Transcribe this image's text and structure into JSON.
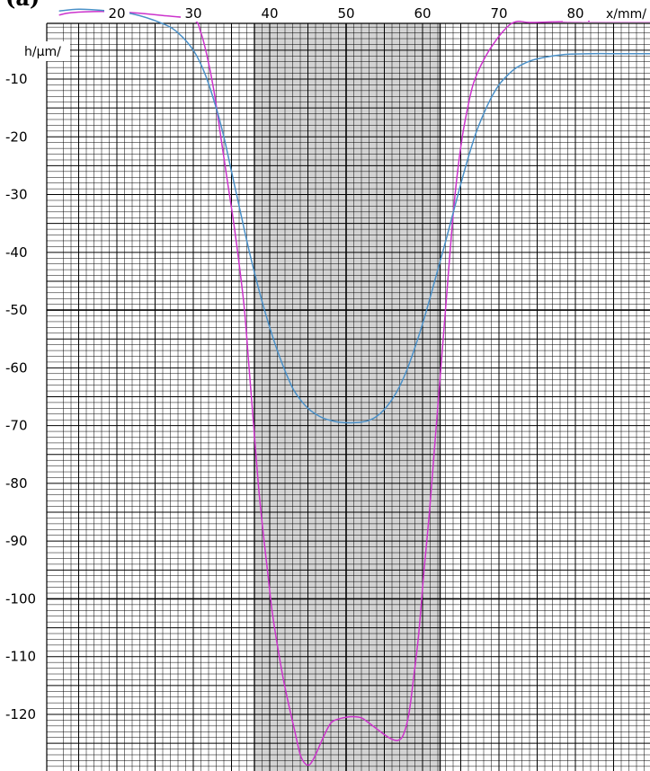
{
  "corner_text": "(a)",
  "chart_data": {
    "type": "line",
    "xlabel": "x/mm/",
    "ylabel": "h/µm/",
    "xlim": [
      12.5,
      90
    ],
    "ylim": [
      -129,
      5
    ],
    "xticks": [
      {
        "value": 20,
        "label": "20"
      },
      {
        "value": 30,
        "label": "30"
      },
      {
        "value": 40,
        "label": "40"
      },
      {
        "value": 50,
        "label": "50"
      },
      {
        "value": 60,
        "label": "60"
      },
      {
        "value": 70,
        "label": "70"
      },
      {
        "value": 80,
        "label": "80"
      }
    ],
    "yticks": [
      {
        "value": -10,
        "label": "-10"
      },
      {
        "value": -20,
        "label": "-20"
      },
      {
        "value": -30,
        "label": "-30"
      },
      {
        "value": -40,
        "label": "-40"
      },
      {
        "value": -50,
        "label": "-50"
      },
      {
        "value": -60,
        "label": "-60"
      },
      {
        "value": -70,
        "label": "-70"
      },
      {
        "value": -80,
        "label": "-80"
      },
      {
        "value": -90,
        "label": "-90"
      },
      {
        "value": -100,
        "label": "-100"
      },
      {
        "value": -110,
        "label": "-110"
      },
      {
        "value": -120,
        "label": "-120"
      }
    ],
    "grid": true,
    "shaded_region": {
      "x_from": 38,
      "x_to": 62.3,
      "color": "#d3d3d3"
    },
    "series": [
      {
        "color": "#cc33cc",
        "x": [
          12.5,
          14,
          18,
          22,
          26,
          30,
          31,
          31.8,
          32.7,
          33.6,
          34.5,
          35.3,
          36,
          36.7,
          37.3,
          37.9,
          38.5,
          39.1,
          39.7,
          40.3,
          41,
          41.8,
          42.6,
          43.3,
          44,
          44.7,
          45.3,
          46,
          47,
          48,
          49,
          50,
          51,
          52,
          53,
          54,
          55,
          56,
          56.8,
          57.5,
          58.2,
          58.8,
          59.5,
          60.2,
          60.9,
          61.5,
          62.1,
          62.7,
          63.3,
          63.9,
          64.5,
          65.2,
          65.9,
          66.6,
          67.5,
          68.5,
          69.5,
          70.5,
          71.5,
          72.5,
          74,
          77,
          81,
          86,
          90
        ],
        "y": [
          1.1,
          1.5,
          1.7,
          1.5,
          1.0,
          0.3,
          -2,
          -6,
          -12,
          -20,
          -28,
          -35,
          -42,
          -50,
          -60,
          -70,
          -80,
          -88,
          -95,
          -102,
          -108,
          -114,
          -119,
          -123,
          -127,
          -128.6,
          -128.6,
          -127,
          -124,
          -121.5,
          -120.8,
          -120.5,
          -120.4,
          -120.6,
          -121.5,
          -122.5,
          -123.5,
          -124.3,
          -124.5,
          -123.5,
          -120,
          -114,
          -106,
          -95,
          -85,
          -75,
          -65,
          -55,
          -45,
          -35,
          -27,
          -20,
          -15,
          -11,
          -8,
          -5.5,
          -3.5,
          -1.8,
          -0.5,
          0,
          -0.2,
          -0.1,
          0,
          0,
          0
        ]
      },
      {
        "color": "#4a90c8",
        "x": [
          12.5,
          15,
          18,
          22,
          26,
          28,
          30,
          31.5,
          33,
          34,
          35,
          36,
          37,
          38,
          39,
          40,
          41,
          42,
          43,
          44,
          45,
          46,
          47,
          48,
          49,
          50,
          51,
          52,
          53,
          54,
          55,
          56,
          57,
          58,
          59,
          60,
          61,
          62,
          63,
          64,
          65,
          66,
          67,
          68,
          69,
          70,
          71,
          72,
          73,
          74,
          75,
          77,
          79,
          82,
          86,
          90
        ],
        "y": [
          1.8,
          2.1,
          1.9,
          1.3,
          -0.4,
          -2,
          -5,
          -9,
          -15,
          -20,
          -26,
          -32,
          -38,
          -43.5,
          -48.5,
          -53,
          -57,
          -60.5,
          -63.5,
          -65.5,
          -67,
          -68,
          -68.7,
          -69.1,
          -69.4,
          -69.5,
          -69.5,
          -69.4,
          -69.1,
          -68.4,
          -67.2,
          -65.5,
          -63.2,
          -60.2,
          -56.5,
          -52.4,
          -47.8,
          -43,
          -38.2,
          -33.2,
          -28.2,
          -23.5,
          -19.3,
          -16,
          -13.2,
          -11,
          -9.5,
          -8.3,
          -7.5,
          -6.9,
          -6.5,
          -6,
          -5.7,
          -5.6,
          -5.6,
          -5.6
        ]
      }
    ]
  }
}
